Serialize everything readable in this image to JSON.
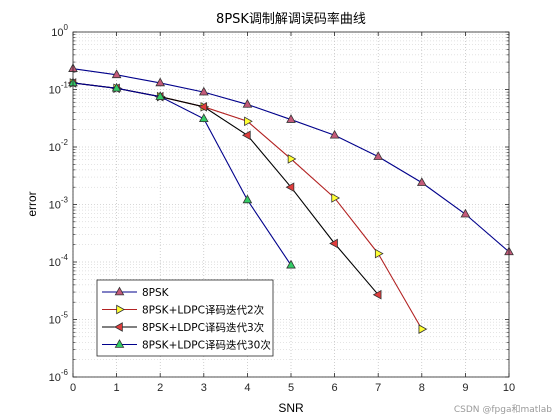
{
  "chart_data": {
    "type": "line",
    "title": "8PSK调制解调误码率曲线",
    "xlabel": "SNR",
    "ylabel": "error",
    "xlim": [
      0,
      10
    ],
    "ylim": [
      1e-06,
      1
    ],
    "yscale": "log",
    "grid": "on (major and minor, dotted)",
    "legend_location": "bottom-left",
    "xticks": [
      "0",
      "1",
      "2",
      "3",
      "4",
      "5",
      "6",
      "7",
      "8",
      "9",
      "10"
    ],
    "yticks": [
      {
        "base": "10",
        "exp": "-6",
        "value": 1e-06
      },
      {
        "base": "10",
        "exp": "-5",
        "value": 1e-05
      },
      {
        "base": "10",
        "exp": "-4",
        "value": 0.0001
      },
      {
        "base": "10",
        "exp": "-3",
        "value": 0.001
      },
      {
        "base": "10",
        "exp": "-2",
        "value": 0.01
      },
      {
        "base": "10",
        "exp": "-1",
        "value": 0.1
      },
      {
        "base": "10",
        "exp": "0",
        "value": 1
      }
    ],
    "series": [
      {
        "name": "8PSK",
        "color": "#00008b",
        "marker": "triangle-up",
        "marker_fill": "#c45a7a",
        "x": [
          0,
          1,
          2,
          3,
          4,
          5,
          6,
          7,
          8,
          9,
          10
        ],
        "y": [
          0.23,
          0.18,
          0.13,
          0.09,
          0.055,
          0.03,
          0.016,
          0.0068,
          0.0024,
          0.00068,
          0.00015
        ]
      },
      {
        "name": "8PSK+LDPC译码迭代2次",
        "color": "#b22222",
        "marker": "triangle-right",
        "marker_fill": "#ffff33",
        "x": [
          0,
          1,
          2,
          3,
          4,
          5,
          6,
          7,
          8
        ],
        "y": [
          0.13,
          0.105,
          0.075,
          0.05,
          0.028,
          0.0062,
          0.0013,
          0.00014,
          6.8e-06
        ]
      },
      {
        "name": "8PSK+LDPC译码迭代3次",
        "color": "#000000",
        "marker": "triangle-left",
        "marker_fill": "#e03c3c",
        "x": [
          0,
          1,
          2,
          3,
          4,
          5,
          6,
          7
        ],
        "y": [
          0.13,
          0.105,
          0.075,
          0.05,
          0.016,
          0.002,
          0.00021,
          2.7e-05
        ]
      },
      {
        "name": "8PSK+LDPC译码迭代30次",
        "color": "#00008b",
        "marker": "triangle-up",
        "marker_fill": "#33cc66",
        "x": [
          0,
          1,
          2,
          3,
          4,
          5
        ],
        "y": [
          0.13,
          0.105,
          0.075,
          0.031,
          0.0012,
          8.8e-05
        ]
      }
    ]
  },
  "watermark": "CSDN @fpga和matlab"
}
